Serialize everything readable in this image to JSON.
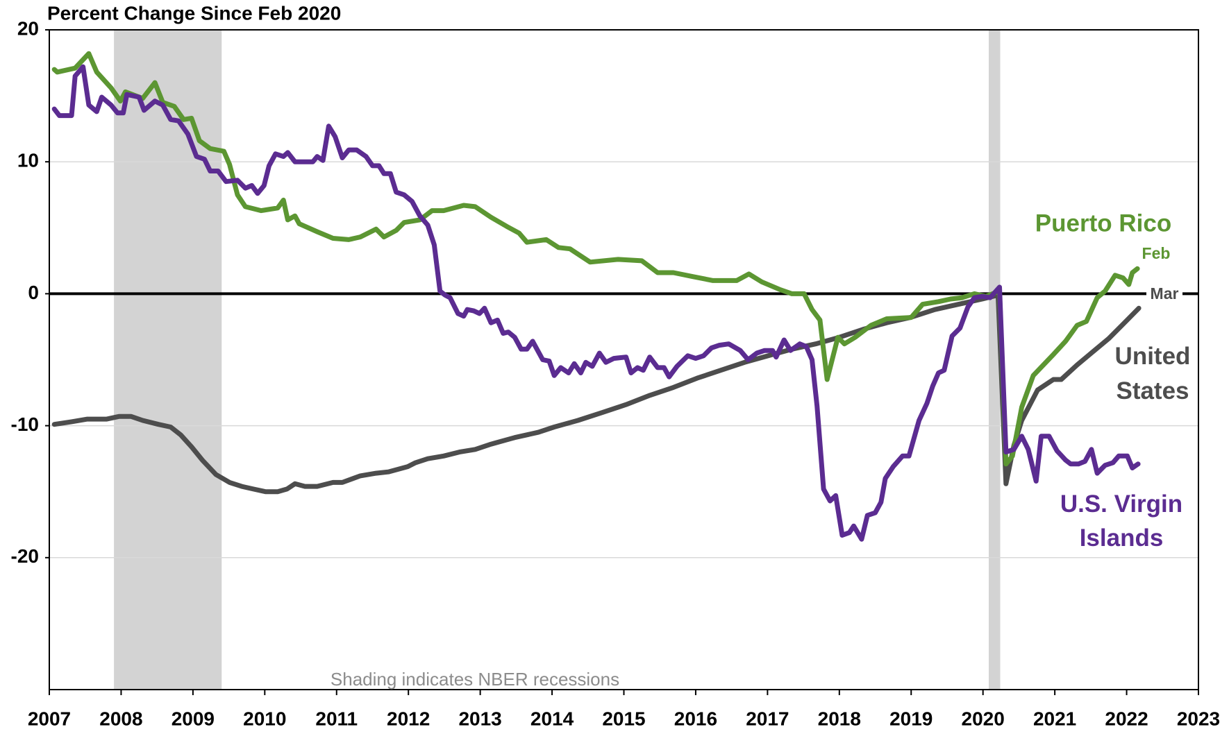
{
  "chart_data": {
    "type": "line",
    "title": "Percent Change Since Feb 2020",
    "xlim": [
      2007,
      2023
    ],
    "xticks": [
      2007,
      2008,
      2009,
      2010,
      2011,
      2012,
      2013,
      2014,
      2015,
      2016,
      2017,
      2018,
      2019,
      2020,
      2021,
      2022,
      2023
    ],
    "ylim": [
      -30,
      20
    ],
    "yticks": [
      20,
      10,
      0,
      -10,
      -20
    ],
    "grid": true,
    "recessions": [
      [
        2007.9,
        2009.4
      ],
      [
        2020.08,
        2020.24
      ]
    ],
    "series": [
      {
        "name": "United States",
        "color": "#4d4d4d",
        "x": [
          2007.07,
          2007.31,
          2007.53,
          2007.8,
          2007.97,
          2008.14,
          2008.3,
          2008.52,
          2008.69,
          2008.83,
          2008.98,
          2009.13,
          2009.32,
          2009.51,
          2009.68,
          2009.84,
          2010.01,
          2010.18,
          2010.31,
          2010.42,
          2010.56,
          2010.73,
          2010.95,
          2011.08,
          2011.33,
          2011.55,
          2011.72,
          2011.99,
          2012.1,
          2012.27,
          2012.49,
          2012.71,
          2012.93,
          2013.15,
          2013.48,
          2013.81,
          2014.03,
          2014.36,
          2014.7,
          2015.03,
          2015.36,
          2015.69,
          2016.02,
          2016.35,
          2016.68,
          2017.01,
          2017.34,
          2017.67,
          2018.0,
          2018.33,
          2018.66,
          2018.99,
          2019.33,
          2019.66,
          2019.99,
          2020.21,
          2020.32,
          2020.43,
          2020.54,
          2020.76,
          2020.98,
          2021.09,
          2021.31,
          2021.53,
          2021.75,
          2021.97,
          2022.17
        ],
        "values": [
          -9.9,
          -9.7,
          -9.5,
          -9.5,
          -9.3,
          -9.3,
          -9.6,
          -9.9,
          -10.1,
          -10.7,
          -11.6,
          -12.6,
          -13.7,
          -14.3,
          -14.6,
          -14.8,
          -15.0,
          -15.0,
          -14.8,
          -14.4,
          -14.6,
          -14.6,
          -14.3,
          -14.3,
          -13.8,
          -13.6,
          -13.5,
          -13.1,
          -12.8,
          -12.5,
          -12.3,
          -12.0,
          -11.8,
          -11.4,
          -10.9,
          -10.5,
          -10.1,
          -9.6,
          -9.0,
          -8.4,
          -7.7,
          -7.1,
          -6.4,
          -5.8,
          -5.2,
          -4.7,
          -4.2,
          -3.8,
          -3.3,
          -2.7,
          -2.2,
          -1.8,
          -1.2,
          -0.8,
          -0.4,
          -0.1,
          -14.4,
          -11.5,
          -9.6,
          -7.3,
          -6.5,
          -6.5,
          -5.4,
          -4.4,
          -3.4,
          -2.2,
          -1.1
        ]
      },
      {
        "name": "Puerto Rico",
        "color": "#5c9632",
        "x": [
          2007.07,
          2007.11,
          2007.36,
          2007.55,
          2007.66,
          2007.86,
          2007.99,
          2008.06,
          2008.3,
          2008.47,
          2008.58,
          2008.74,
          2008.87,
          2008.98,
          2009.09,
          2009.24,
          2009.43,
          2009.51,
          2009.62,
          2009.73,
          2009.95,
          2010.18,
          2010.26,
          2010.32,
          2010.42,
          2010.48,
          2010.73,
          2010.95,
          2011.17,
          2011.33,
          2011.55,
          2011.66,
          2011.83,
          2011.94,
          2012.16,
          2012.33,
          2012.49,
          2012.77,
          2012.93,
          2013.15,
          2013.37,
          2013.54,
          2013.65,
          2013.92,
          2014.09,
          2014.25,
          2014.53,
          2014.92,
          2015.25,
          2015.47,
          2015.69,
          2015.96,
          2016.24,
          2016.57,
          2016.74,
          2016.92,
          2017.18,
          2017.34,
          2017.51,
          2017.62,
          2017.73,
          2017.83,
          2017.98,
          2018.07,
          2018.22,
          2018.44,
          2018.66,
          2019.0,
          2019.16,
          2019.38,
          2019.55,
          2019.71,
          2019.88,
          2020.04,
          2020.23,
          2020.32,
          2020.41,
          2020.54,
          2020.7,
          2020.98,
          2021.15,
          2021.31,
          2021.44,
          2021.59,
          2021.7,
          2021.84,
          2021.95,
          2022.03,
          2022.08,
          2022.15
        ],
        "values": [
          17,
          16.8,
          17.1,
          18.2,
          16.8,
          15.6,
          14.6,
          15.3,
          14.8,
          16,
          14.5,
          14.2,
          13.2,
          13.3,
          11.6,
          11,
          10.8,
          9.8,
          7.5,
          6.6,
          6.3,
          6.5,
          7.1,
          5.6,
          5.9,
          5.3,
          4.7,
          4.2,
          4.1,
          4.3,
          4.9,
          4.3,
          4.8,
          5.4,
          5.6,
          6.3,
          6.3,
          6.7,
          6.6,
          5.8,
          5.1,
          4.6,
          3.9,
          4.1,
          3.5,
          3.4,
          2.4,
          2.6,
          2.5,
          1.6,
          1.6,
          1.3,
          1.0,
          1.0,
          1.5,
          0.9,
          0.3,
          0.0,
          0.0,
          -1.2,
          -2.0,
          -6.5,
          -3.3,
          -3.8,
          -3.3,
          -2.4,
          -1.9,
          -1.8,
          -0.8,
          -0.6,
          -0.4,
          -0.3,
          0.0,
          -0.2,
          0.2,
          -12.9,
          -12.3,
          -8.6,
          -6.2,
          -4.6,
          -3.6,
          -2.4,
          -2.1,
          -0.3,
          0.2,
          1.4,
          1.2,
          0.7,
          1.6,
          1.9
        ]
      },
      {
        "name": "U.S. Virgin Islands",
        "color": "#5b2c91",
        "x": [
          2007.07,
          2007.14,
          2007.31,
          2007.36,
          2007.47,
          2007.55,
          2007.66,
          2007.73,
          2007.86,
          2007.95,
          2008.03,
          2008.08,
          2008.25,
          2008.32,
          2008.47,
          2008.58,
          2008.69,
          2008.8,
          2008.93,
          2009.05,
          2009.16,
          2009.24,
          2009.35,
          2009.46,
          2009.62,
          2009.73,
          2009.82,
          2009.9,
          2009.99,
          2010.06,
          2010.15,
          2010.26,
          2010.32,
          2010.42,
          2010.67,
          2010.73,
          2010.81,
          2010.89,
          2010.98,
          2011.08,
          2011.17,
          2011.28,
          2011.41,
          2011.5,
          2011.59,
          2011.66,
          2011.75,
          2011.83,
          2011.94,
          2012.05,
          2012.16,
          2012.27,
          2012.36,
          2012.44,
          2012.51,
          2012.58,
          2012.69,
          2012.77,
          2012.82,
          2012.91,
          2012.99,
          2013.06,
          2013.15,
          2013.24,
          2013.32,
          2013.39,
          2013.48,
          2013.57,
          2013.65,
          2013.73,
          2013.87,
          2013.96,
          2014.03,
          2014.12,
          2014.23,
          2014.31,
          2014.4,
          2014.47,
          2014.56,
          2014.66,
          2014.75,
          2014.86,
          2015.03,
          2015.1,
          2015.19,
          2015.27,
          2015.36,
          2015.47,
          2015.56,
          2015.63,
          2015.74,
          2015.89,
          2016.0,
          2016.11,
          2016.22,
          2016.33,
          2016.46,
          2016.62,
          2016.73,
          2016.85,
          2016.96,
          2017.07,
          2017.12,
          2017.23,
          2017.32,
          2017.45,
          2017.54,
          2017.62,
          2017.69,
          2017.78,
          2017.87,
          2017.95,
          2018.04,
          2018.14,
          2018.2,
          2018.31,
          2018.39,
          2018.5,
          2018.58,
          2018.64,
          2018.75,
          2018.88,
          2018.97,
          2019.11,
          2019.22,
          2019.3,
          2019.38,
          2019.46,
          2019.57,
          2019.68,
          2019.79,
          2019.88,
          2019.99,
          2020.1,
          2020.23,
          2020.32,
          2020.43,
          2020.54,
          2020.63,
          2020.74,
          2020.81,
          2020.92,
          2021.03,
          2021.15,
          2021.22,
          2021.33,
          2021.42,
          2021.51,
          2021.59,
          2021.7,
          2021.81,
          2021.89,
          2022.01,
          2022.08,
          2022.16
        ],
        "values": [
          14,
          13.5,
          13.5,
          16.5,
          17.2,
          14.3,
          13.8,
          14.9,
          14.3,
          13.7,
          13.7,
          15.1,
          14.9,
          13.9,
          14.6,
          14.3,
          13.2,
          13.1,
          12.1,
          10.4,
          10.2,
          9.3,
          9.3,
          8.5,
          8.6,
          8.0,
          8.2,
          7.6,
          8.2,
          9.7,
          10.6,
          10.4,
          10.7,
          10,
          10,
          10.4,
          10.1,
          12.7,
          11.9,
          10.3,
          10.9,
          10.9,
          10.4,
          9.7,
          9.7,
          9.1,
          9.1,
          7.7,
          7.5,
          7.0,
          5.9,
          5.2,
          3.7,
          0.2,
          -0.1,
          -0.3,
          -1.5,
          -1.7,
          -1.2,
          -1.3,
          -1.5,
          -1.1,
          -2.2,
          -2.0,
          -3.0,
          -2.9,
          -3.3,
          -4.2,
          -4.2,
          -3.6,
          -5.0,
          -5.1,
          -6.2,
          -5.6,
          -6.0,
          -5.3,
          -6.0,
          -5.2,
          -5.5,
          -4.5,
          -5.2,
          -4.9,
          -4.8,
          -6.0,
          -5.6,
          -5.8,
          -4.8,
          -5.6,
          -5.6,
          -6.3,
          -5.5,
          -4.7,
          -4.9,
          -4.7,
          -4.1,
          -3.9,
          -3.8,
          -4.3,
          -5.0,
          -4.5,
          -4.3,
          -4.3,
          -4.8,
          -3.5,
          -4.3,
          -3.8,
          -4.0,
          -5.0,
          -8.5,
          -14.8,
          -15.7,
          -15.3,
          -18.3,
          -18.1,
          -17.6,
          -18.6,
          -16.8,
          -16.6,
          -15.8,
          -14.0,
          -13.1,
          -12.3,
          -12.3,
          -9.6,
          -8.3,
          -7.0,
          -6.0,
          -5.8,
          -3.2,
          -2.6,
          -1.0,
          -0.3,
          -0.2,
          -0.3,
          0.5,
          -12.0,
          -11.8,
          -10.8,
          -11.8,
          -14.2,
          -10.8,
          -10.8,
          -11.9,
          -12.6,
          -12.9,
          -12.9,
          -12.7,
          -11.8,
          -13.6,
          -13.0,
          -12.8,
          -12.3,
          -12.3,
          -13.2,
          -12.9
        ]
      }
    ],
    "annotations": [
      {
        "text": "Feb",
        "color": "#5c9632"
      },
      {
        "text": "Mar",
        "color": "#4d4d4d"
      },
      {
        "text": "Shading indicates NBER recessions",
        "color": "#8c8c8c"
      }
    ]
  }
}
